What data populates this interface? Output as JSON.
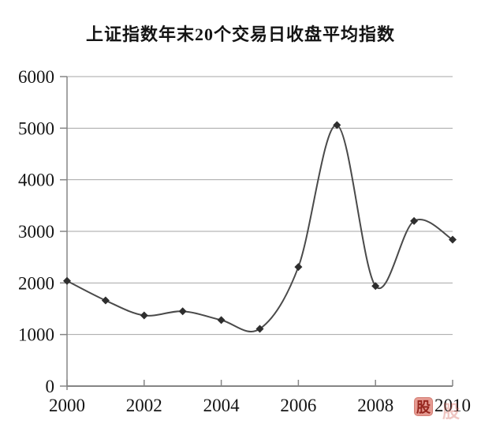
{
  "chart_data": {
    "type": "line",
    "title": "上证指数年末20个交易日收盘平均指数",
    "x": [
      2000,
      2001,
      2002,
      2003,
      2004,
      2005,
      2006,
      2007,
      2008,
      2009,
      2010
    ],
    "values": [
      2040,
      1660,
      1370,
      1450,
      1280,
      1110,
      2310,
      5060,
      1940,
      3200,
      2840
    ],
    "xlabel": "",
    "ylabel": "",
    "xlim": [
      2000,
      2010
    ],
    "ylim": [
      0,
      6000
    ],
    "x_ticks": [
      2000,
      2002,
      2004,
      2006,
      2008,
      2010
    ],
    "y_ticks": [
      0,
      1000,
      2000,
      3000,
      4000,
      5000,
      6000
    ],
    "grid": "horizontal-only",
    "legend": "none",
    "curve": "smooth",
    "marker": "diamond",
    "line_color": "#4a4a4a",
    "marker_color": "#2e2e2e",
    "gridline_color": "#a6a6a6",
    "axis_color": "#858585",
    "text_color": "#141414"
  },
  "watermark": {
    "badge_char": "股",
    "color": "#d5695f"
  }
}
